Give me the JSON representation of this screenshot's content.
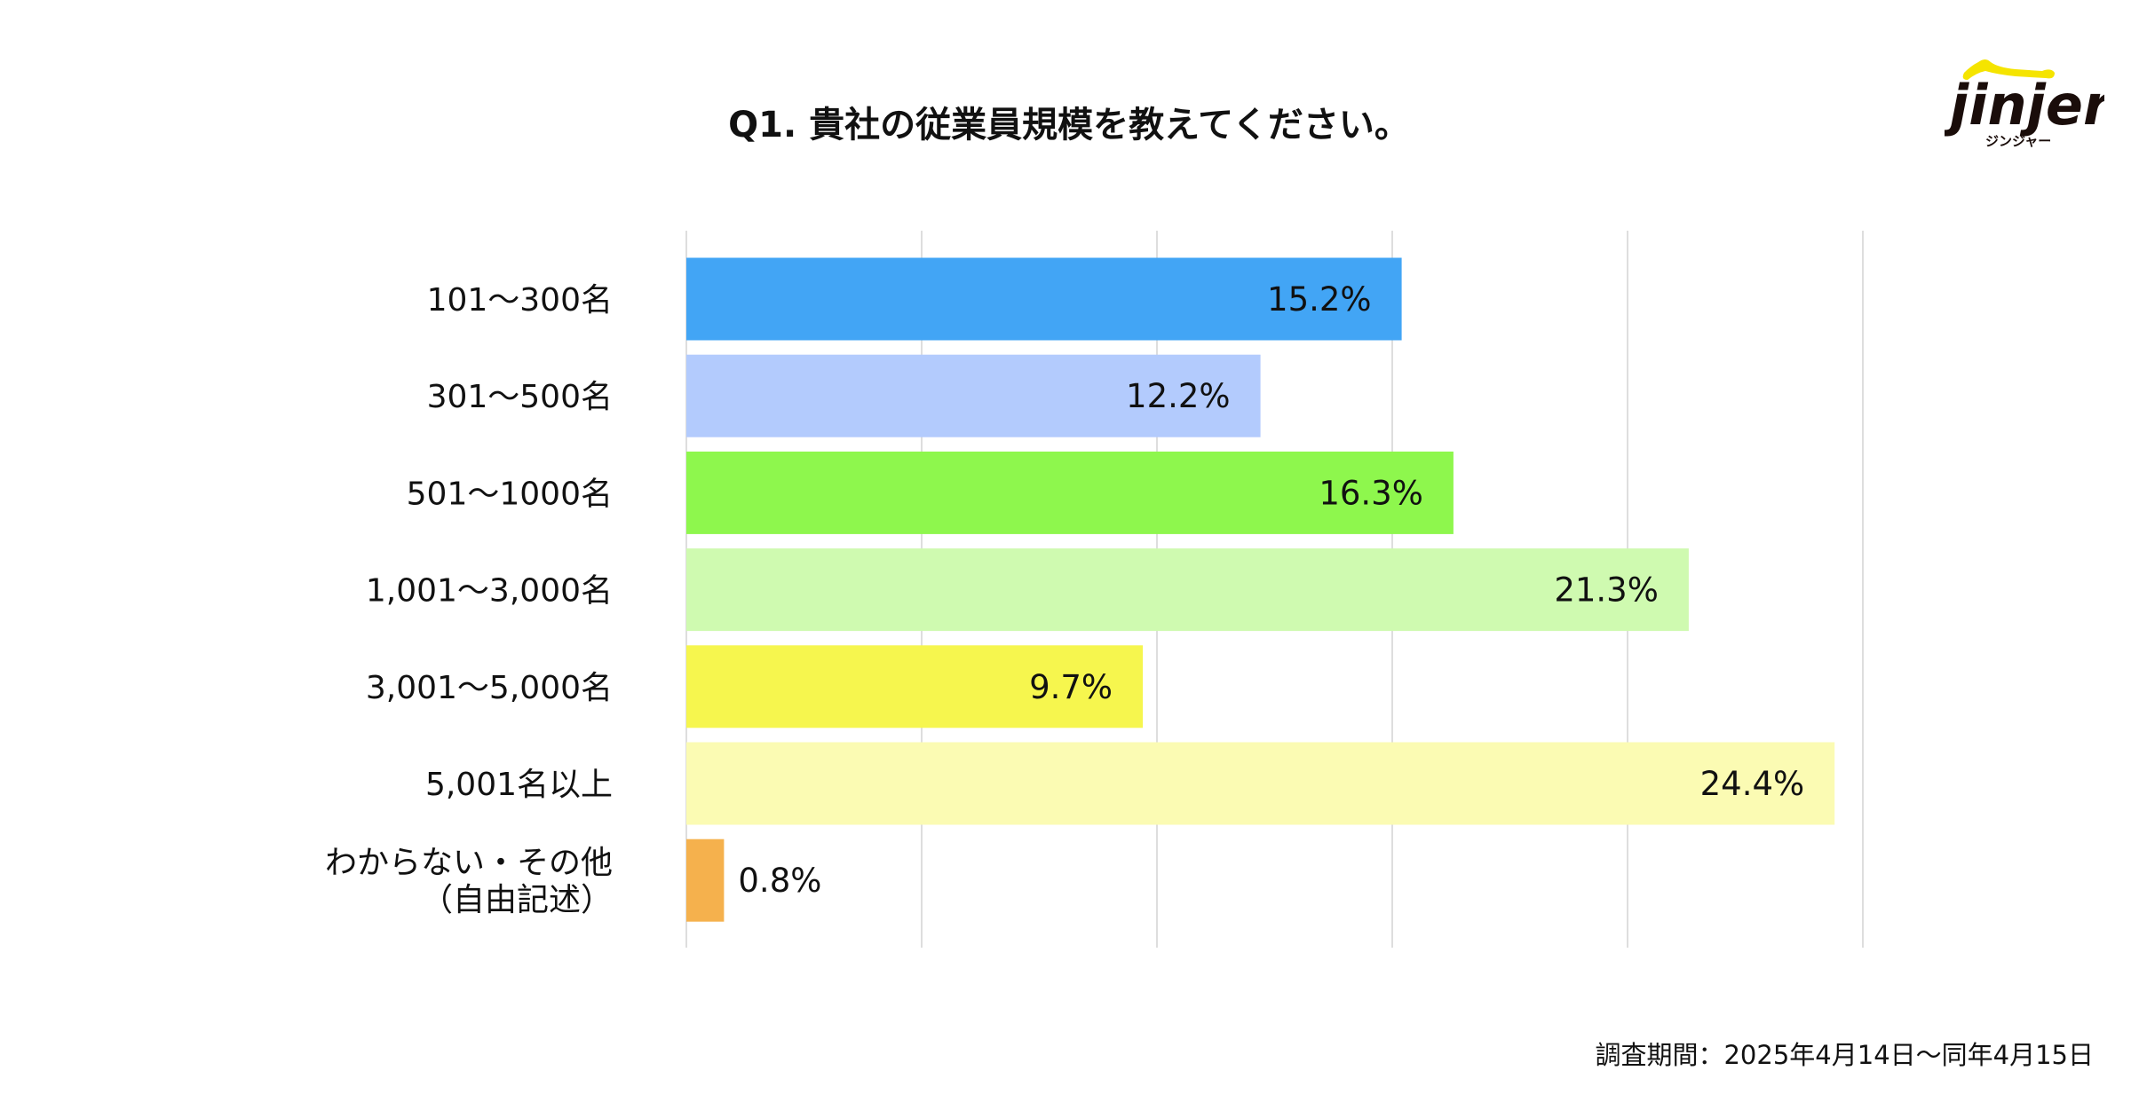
{
  "title": "Q1. 貴社の従業員規模を教えてください。",
  "footer": "調査期間：2025年4月14日〜同年4月15日",
  "logo": {
    "text": "jinjer",
    "subtext": "ジンジャー",
    "accent": "#f5e400"
  },
  "chart_data": {
    "type": "bar",
    "orientation": "horizontal",
    "title": "Q1. 貴社の従業員規模を教えてください。",
    "categories": [
      [
        "101〜300名"
      ],
      [
        "301〜500名"
      ],
      [
        "501〜1000名"
      ],
      [
        "1,001〜3,000名"
      ],
      [
        "3,001〜5,000名"
      ],
      [
        "5,001名以上"
      ],
      [
        "わからない・その他",
        "（自由記述）"
      ]
    ],
    "values": [
      15.2,
      12.2,
      16.3,
      21.3,
      9.7,
      24.4,
      0.8
    ],
    "labels": [
      "15.2%",
      "12.2%",
      "16.3%",
      "21.3%",
      "9.7%",
      "24.4%",
      "0.8%"
    ],
    "colors": [
      "#42a5f5",
      "#b3cbfd",
      "#8ef74d",
      "#cffab0",
      "#f6f64e",
      "#fbfbb3",
      "#f5b14d"
    ],
    "xlim": [
      0,
      25
    ],
    "grid_step": 5,
    "grid": true,
    "xlabel": "",
    "ylabel": ""
  }
}
